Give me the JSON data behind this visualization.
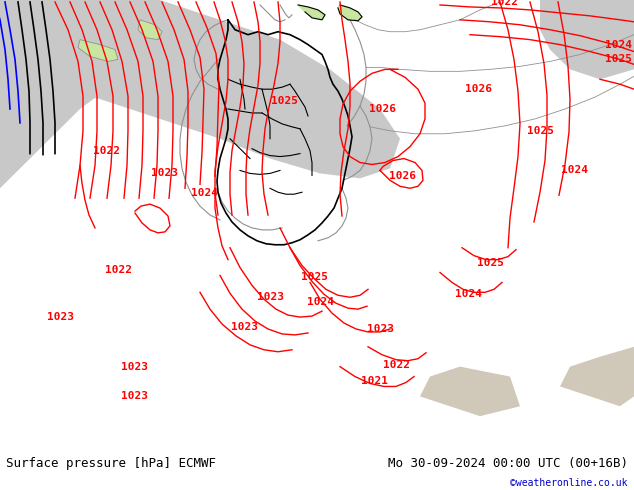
{
  "title_left": "Surface pressure [hPa] ECMWF",
  "title_right": "Mo 30-09-2024 00:00 UTC (00+16B)",
  "copyright": "©weatheronline.co.uk",
  "bg_color": "#c8e6a0",
  "sea_color": "#c8c8c8",
  "sea_color2": "#d8d0c8",
  "isobar_color": "#ff0000",
  "isobar_color_blue": "#0000ff",
  "isobar_color_black": "#000000",
  "border_color_black": "#000000",
  "border_color_gray": "#909090",
  "text_color_bottom_left": "#000000",
  "text_color_bottom_right": "#000000",
  "text_color_copyright": "#0000cc",
  "figsize": [
    6.34,
    4.9
  ],
  "dpi": 100,
  "bottom_bar_color": "#ffffff",
  "font_size_bottom": 9,
  "font_size_isobar": 8
}
